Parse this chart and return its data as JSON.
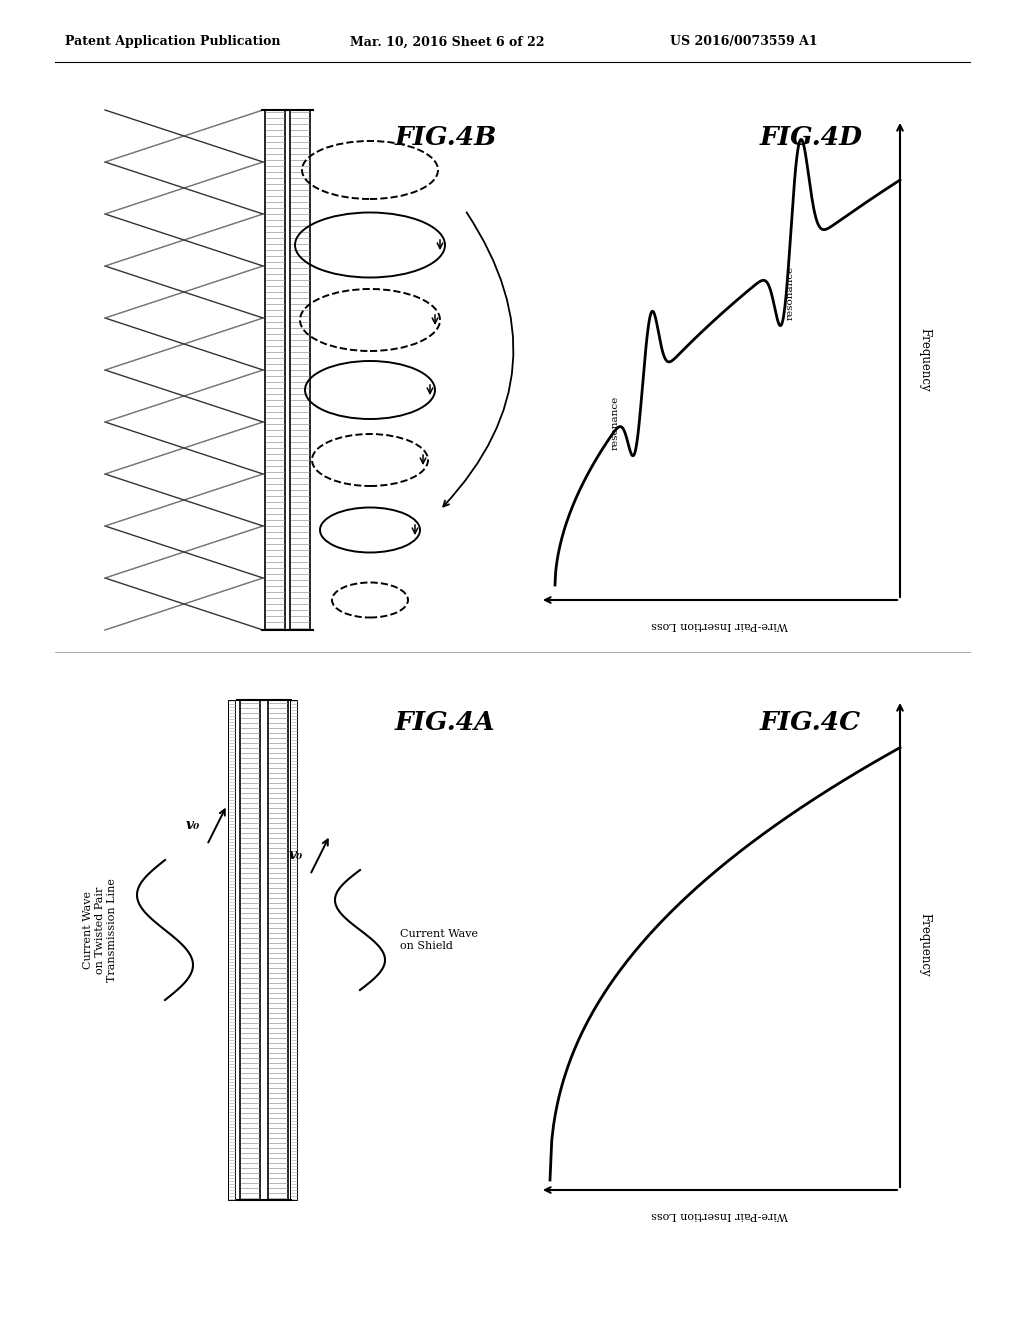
{
  "title_text": "Patent Application Publication",
  "title_date": "Mar. 10, 2016 Sheet 6 of 22",
  "title_patent": "US 2016/0073559 A1",
  "background_color": "#ffffff",
  "fig4a_label": "FIG.4A",
  "fig4b_label": "FIG.4B",
  "fig4c_label": "FIG.4C",
  "fig4d_label": "FIG.4D",
  "label_current_wave_twisted": "Current Wave\non Twisted Pair\nTransmission Line",
  "label_current_wave_shield": "Current Wave\non Shield",
  "label_v0_top": "v₀",
  "label_v0_bottom": "v₀",
  "label_freq_c": "Frequency",
  "label_freq_d": "Frequency",
  "label_wirepair_c": "Wire-Pair Insertion Loss",
  "label_wirepair_d": "Wire-Pair Insertion Loss",
  "label_resonance_low": "resonance",
  "label_resonance_high": "resonance"
}
